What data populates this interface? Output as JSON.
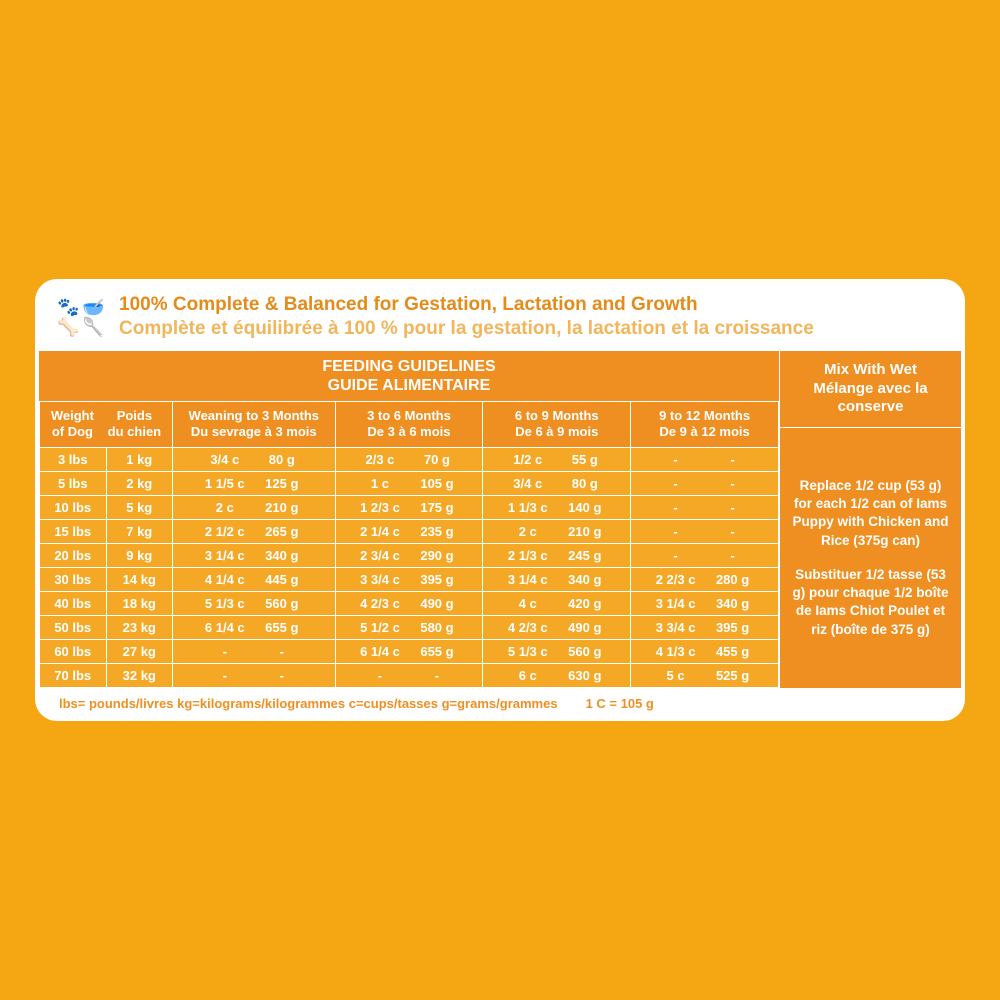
{
  "colors": {
    "page_bg": "#f4a713",
    "panel_bg": "#ffffff",
    "header_en": "#e48b1a",
    "header_fr": "#f1b55c",
    "block_bg": "#ef8f22",
    "row_bg": "#f4a826",
    "border": "#ffffff",
    "footer_text": "#ef8f22"
  },
  "header": {
    "en": "100% Complete & Balanced for Gestation, Lactation and Growth",
    "fr": "Complète et équilibrée à 100 % pour la gestation, la lactation et la croissance",
    "icon_glyphs": [
      "🐾",
      "🥣",
      "🦴",
      "🥄"
    ]
  },
  "table": {
    "title_en": "FEEDING GUIDELINES",
    "title_fr": "GUIDE ALIMENTAIRE",
    "columns": [
      {
        "en": "Weight of Dog",
        "fr": "Poids du chien"
      },
      {
        "en": "Weaning to 3 Months",
        "fr": "Du sevrage à 3 mois"
      },
      {
        "en": "3 to 6 Months",
        "fr": "De 3 à 6 mois"
      },
      {
        "en": "6 to 9 Months",
        "fr": "De 6 à 9 mois"
      },
      {
        "en": "9 to 12 Months",
        "fr": "De 9 à 12 mois"
      }
    ],
    "col_widths_pct": [
      18,
      22,
      20,
      20,
      20
    ],
    "rows": [
      {
        "lbs": "3 lbs",
        "kg": "1 kg",
        "c": [
          "3/4 c",
          "2/3 c",
          "1/2 c",
          "-"
        ],
        "g": [
          "80 g",
          "70 g",
          "55 g",
          "-"
        ]
      },
      {
        "lbs": "5 lbs",
        "kg": "2 kg",
        "c": [
          "1 1/5 c",
          "1 c",
          "3/4 c",
          "-"
        ],
        "g": [
          "125 g",
          "105 g",
          "80 g",
          "-"
        ]
      },
      {
        "lbs": "10 lbs",
        "kg": "5 kg",
        "c": [
          "2 c",
          "1 2/3 c",
          "1 1/3 c",
          "-"
        ],
        "g": [
          "210 g",
          "175 g",
          "140 g",
          "-"
        ]
      },
      {
        "lbs": "15 lbs",
        "kg": "7 kg",
        "c": [
          "2 1/2 c",
          "2 1/4 c",
          "2 c",
          "-"
        ],
        "g": [
          "265 g",
          "235 g",
          "210 g",
          "-"
        ]
      },
      {
        "lbs": "20 lbs",
        "kg": "9 kg",
        "c": [
          "3 1/4 c",
          "2 3/4 c",
          "2 1/3 c",
          "-"
        ],
        "g": [
          "340 g",
          "290 g",
          "245 g",
          "-"
        ]
      },
      {
        "lbs": "30 lbs",
        "kg": "14 kg",
        "c": [
          "4 1/4 c",
          "3 3/4 c",
          "3 1/4 c",
          "2 2/3 c"
        ],
        "g": [
          "445 g",
          "395 g",
          "340 g",
          "280 g"
        ]
      },
      {
        "lbs": "40 lbs",
        "kg": "18 kg",
        "c": [
          "5 1/3 c",
          "4 2/3 c",
          "4 c",
          "3 1/4 c"
        ],
        "g": [
          "560 g",
          "490 g",
          "420 g",
          "340 g"
        ]
      },
      {
        "lbs": "50 lbs",
        "kg": "23 kg",
        "c": [
          "6 1/4 c",
          "5 1/2 c",
          "4 2/3 c",
          "3 3/4 c"
        ],
        "g": [
          "655 g",
          "580 g",
          "490 g",
          "395 g"
        ]
      },
      {
        "lbs": "60 lbs",
        "kg": "27 kg",
        "c": [
          "-",
          "6 1/4 c",
          "5 1/3 c",
          "4 1/3 c"
        ],
        "g": [
          "-",
          "655 g",
          "560 g",
          "455 g"
        ]
      },
      {
        "lbs": "70 lbs",
        "kg": "32 kg",
        "c": [
          "-",
          "-",
          "6 c",
          "5 c"
        ],
        "g": [
          "-",
          "-",
          "630 g",
          "525 g"
        ]
      }
    ]
  },
  "side": {
    "title_en": "Mix With Wet",
    "title_fr": "Mélange avec la conserve",
    "p1": "Replace 1/2 cup (53 g) for each 1/2 can of Iams Puppy with Chicken and Rice (375g can)",
    "p2": "Substituer 1/2 tasse (53 g) pour chaque 1/2 boîte de Iams Chiot Poulet et riz (boîte de 375 g)"
  },
  "footer": {
    "legend": "lbs= pounds/livres kg=kilograms/kilogrammes c=cups/tasses g=grams/grammes",
    "note": "1 C = 105 g"
  }
}
